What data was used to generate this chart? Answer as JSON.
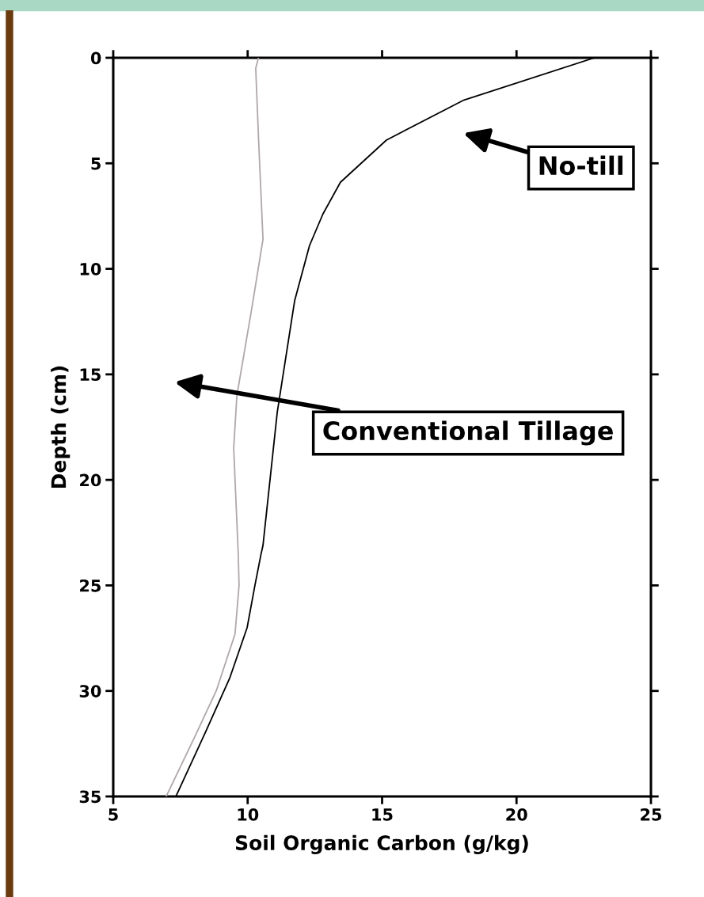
{
  "chart_data": {
    "type": "line",
    "xlabel": "Soil Organic Carbon (g/kg)",
    "ylabel": "Depth (cm)",
    "xlim": [
      5,
      25
    ],
    "xticks": [
      5,
      10,
      15,
      20,
      25
    ],
    "ylim": [
      35,
      0
    ],
    "yticks": [
      0,
      5,
      10,
      15,
      20,
      25,
      30,
      35
    ],
    "grid": false,
    "legend": "right",
    "marker": "none",
    "line_style": "solid",
    "series": [
      {
        "name": "No-till",
        "color": "#000000",
        "x": [
          22.9,
          18.05,
          15.16,
          13.45,
          12.8,
          12.3,
          11.75,
          11.7,
          11.1,
          10.57,
          10.5,
          10.27,
          9.98,
          9.33,
          8.45,
          7.33
        ],
        "values": [
          0,
          2.0,
          3.9,
          5.9,
          7.4,
          8.9,
          11.5,
          11.9,
          16.8,
          23.1,
          23.5,
          25.0,
          27.0,
          29.4,
          31.9,
          35
        ]
      },
      {
        "name": "Conventional Tillage",
        "color": "#b0a8a8",
        "x": [
          10.4,
          10.3,
          10.4,
          10.57,
          10.2,
          10.15,
          9.6,
          9.48,
          9.65,
          9.68,
          9.53,
          8.83,
          8.06,
          6.97
        ],
        "values": [
          0,
          0.5,
          3.7,
          8.6,
          11.5,
          11.9,
          16,
          18.5,
          23.5,
          25,
          27.3,
          30,
          32.1,
          35
        ]
      }
    ]
  }
}
